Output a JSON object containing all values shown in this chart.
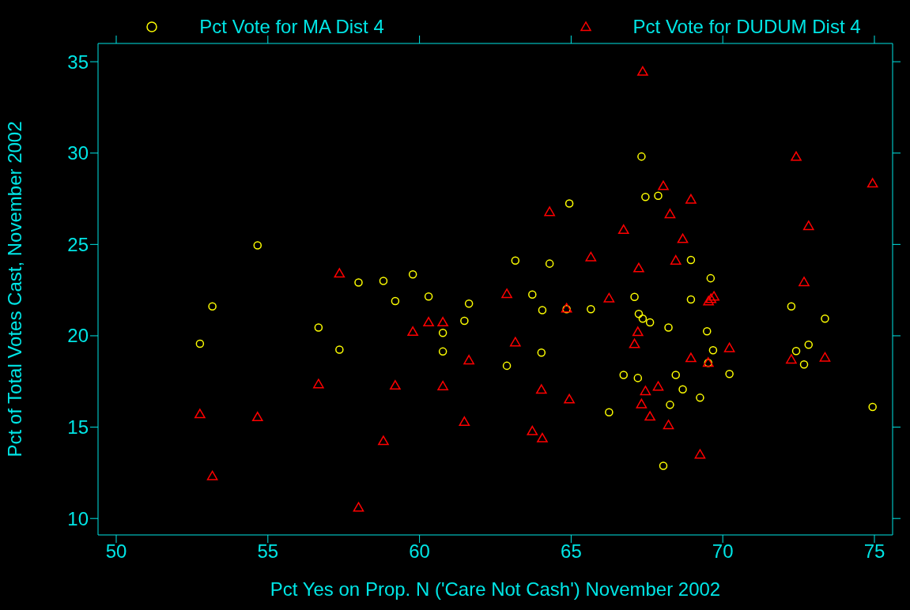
{
  "chart_data": {
    "type": "scatter",
    "xlabel": "Pct Yes on Prop. N ('Care Not Cash') November 2002",
    "ylabel": "Pct of Total Votes Cast, November 2002",
    "xlim": [
      49.4,
      75.6
    ],
    "xticks": [
      50,
      55,
      60,
      65,
      70,
      75
    ],
    "ylim": [
      9.1,
      36
    ],
    "yticks": [
      10,
      15,
      20,
      25,
      30,
      35
    ],
    "legend": "top",
    "series": [
      {
        "name": "Pct Vote for MA Dist 4",
        "color": "#ffff00",
        "marker": "circle",
        "x": [
          52.76,
          53.17,
          54.66,
          56.67,
          57.36,
          57.99,
          58.81,
          59.2,
          59.78,
          60.3,
          60.77,
          60.77,
          61.48,
          61.63,
          62.88,
          63.16,
          63.72,
          64.02,
          64.05,
          64.29,
          64.85,
          64.94,
          65.65,
          66.25,
          66.73,
          67.09,
          67.2,
          67.23,
          67.32,
          67.36,
          67.45,
          67.6,
          67.87,
          68.04,
          68.21,
          68.26,
          68.45,
          68.68,
          68.95,
          68.95,
          69.25,
          69.48,
          69.52,
          69.6,
          69.68,
          70.22,
          72.26,
          72.42,
          72.68,
          72.83,
          73.37,
          74.94
        ],
        "values": [
          19.57,
          21.61,
          24.95,
          20.45,
          19.24,
          22.92,
          23.0,
          21.9,
          23.36,
          22.15,
          20.16,
          19.14,
          20.82,
          21.76,
          18.36,
          24.12,
          22.26,
          19.08,
          21.4,
          23.95,
          21.46,
          27.24,
          21.46,
          15.81,
          17.86,
          22.13,
          17.69,
          21.2,
          29.81,
          20.94,
          27.6,
          20.73,
          27.66,
          12.88,
          20.45,
          16.22,
          17.86,
          17.07,
          24.15,
          21.99,
          16.61,
          20.25,
          18.52,
          23.15,
          19.21,
          17.91,
          21.61,
          19.17,
          18.43,
          19.51,
          20.94,
          16.11
        ]
      },
      {
        "name": "Pct Vote for DUDUM Dist 4",
        "color": "#ff0000",
        "marker": "triangle",
        "x": [
          52.76,
          53.17,
          54.66,
          56.67,
          57.36,
          57.99,
          58.81,
          59.2,
          59.78,
          60.3,
          60.77,
          60.77,
          61.48,
          61.63,
          62.88,
          63.16,
          63.72,
          64.02,
          64.05,
          64.29,
          64.85,
          64.94,
          65.65,
          66.25,
          66.73,
          67.09,
          67.2,
          67.23,
          67.32,
          67.36,
          67.45,
          67.6,
          67.87,
          68.04,
          68.21,
          68.26,
          68.45,
          68.68,
          68.95,
          68.95,
          69.25,
          69.53,
          69.52,
          69.61,
          69.71,
          70.22,
          72.26,
          72.42,
          72.68,
          72.83,
          73.37,
          74.94
        ],
        "values": [
          15.67,
          12.28,
          15.51,
          17.31,
          23.37,
          10.56,
          14.2,
          17.24,
          20.18,
          20.7,
          20.7,
          17.2,
          15.25,
          18.62,
          22.25,
          19.6,
          14.74,
          17.01,
          14.35,
          26.74,
          21.46,
          16.48,
          24.26,
          22.01,
          25.76,
          19.51,
          20.17,
          23.66,
          16.22,
          34.42,
          16.93,
          15.54,
          17.18,
          28.16,
          15.07,
          26.62,
          24.08,
          25.26,
          27.42,
          18.74,
          13.46,
          21.85,
          18.49,
          21.98,
          22.11,
          19.29,
          18.66,
          29.76,
          22.9,
          25.97,
          18.77,
          28.3
        ]
      }
    ]
  }
}
